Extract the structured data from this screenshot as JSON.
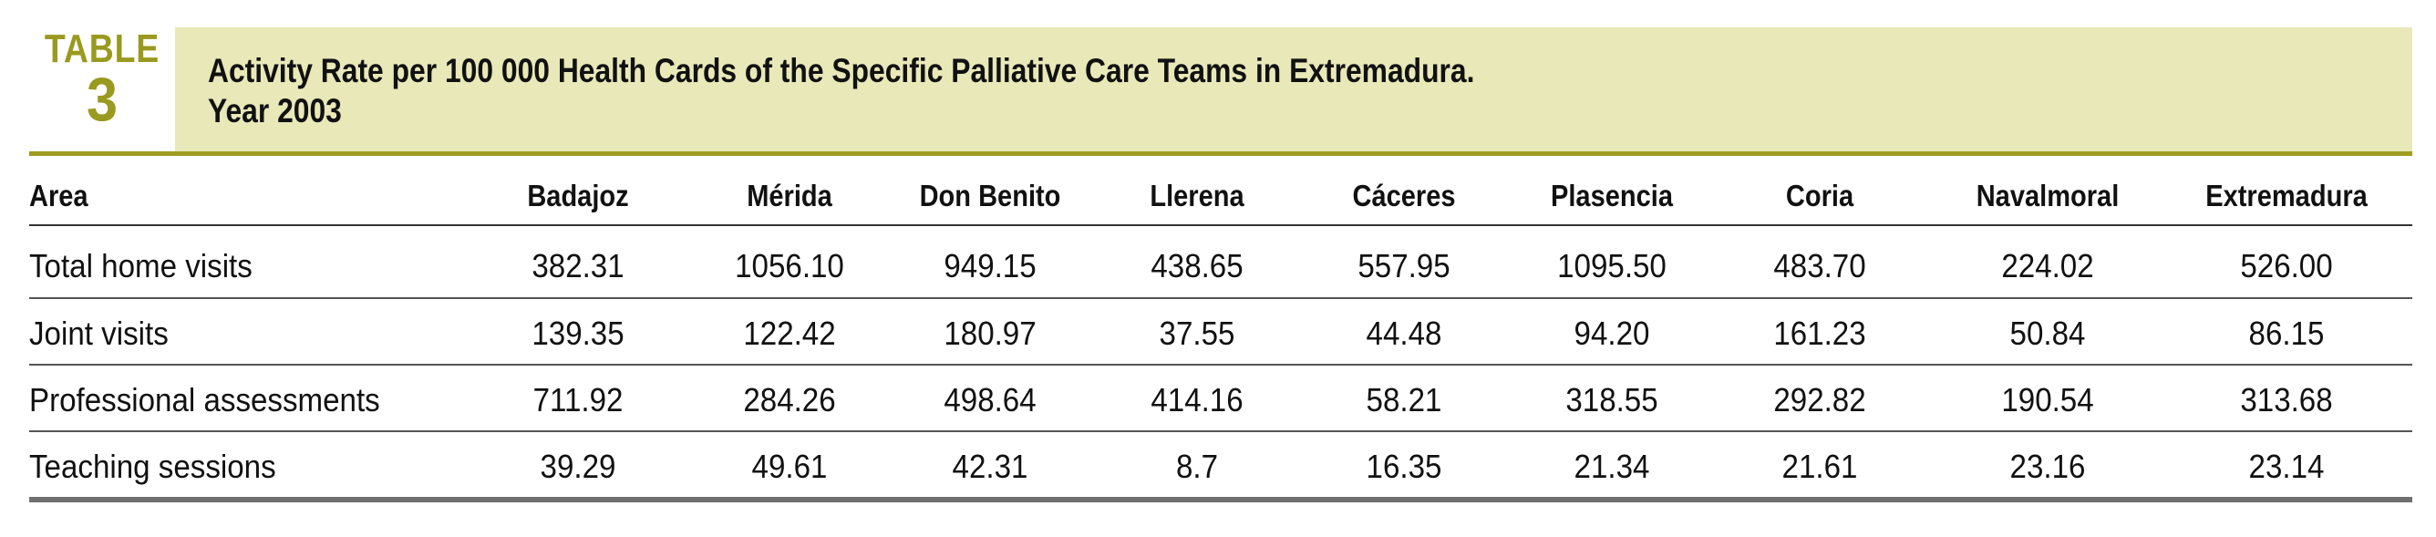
{
  "badge": {
    "word": "TABLE",
    "number": "3"
  },
  "title": {
    "line1": "Activity Rate per 100 000 Health Cards of the Specific Palliative Care Teams in Extremadura.",
    "line2": "Year 2003"
  },
  "table": {
    "headers": [
      "Area",
      "Badajoz",
      "Mérida",
      "Don Benito",
      "Llerena",
      "Cáceres",
      "Plasencia",
      "Coria",
      "Navalmoral",
      "Extremadura"
    ],
    "rows": [
      [
        "Total home visits",
        "382.31",
        "1056.10",
        "949.15",
        "438.65",
        "557.95",
        "1095.50",
        "483.70",
        "224.02",
        "526.00"
      ],
      [
        "Joint visits",
        "139.35",
        "122.42",
        "180.97",
        "37.55",
        "44.48",
        "94.20",
        "161.23",
        "50.84",
        "86.15"
      ],
      [
        "Professional assessments",
        "711.92",
        "284.26",
        "498.64",
        "414.16",
        "58.21",
        "318.55",
        "292.82",
        "190.54",
        "313.68"
      ],
      [
        "Teaching sessions",
        "39.29",
        "49.61",
        "42.31",
        "8.7",
        "16.35",
        "21.34",
        "21.61",
        "23.16",
        "23.14"
      ]
    ]
  },
  "colors": {
    "olive": "#9d9d22",
    "band": "#e8e8b9",
    "badge_text": "#999a1f"
  }
}
